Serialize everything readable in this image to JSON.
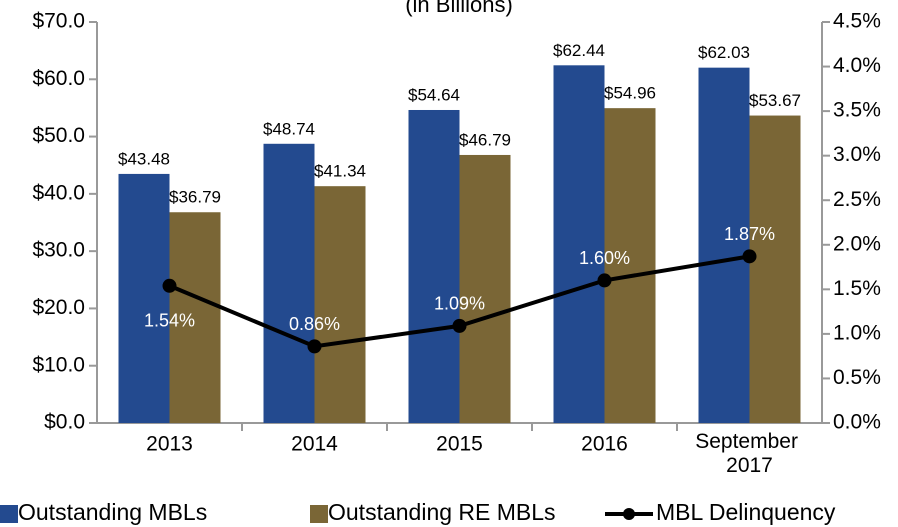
{
  "chart_data": {
    "type": "bar",
    "title": "(in Billions)",
    "categories": [
      "2013",
      "2014",
      "2015",
      "2016",
      "September 2017"
    ],
    "series": [
      {
        "name": "Outstanding MBLs",
        "color": "#234a8f",
        "values": [
          43.48,
          48.74,
          54.64,
          62.44,
          62.03
        ],
        "value_labels": [
          "$43.48",
          "$48.74",
          "$54.64",
          "$62.44",
          "$62.03"
        ]
      },
      {
        "name": "Outstanding RE MBLs",
        "color": "#7a6636",
        "values": [
          36.79,
          41.34,
          46.79,
          54.96,
          53.67
        ],
        "value_labels": [
          "$36.79",
          "$41.34",
          "$46.79",
          "$54.96",
          "$53.67"
        ]
      },
      {
        "name": "MBL Delinquency",
        "type": "line",
        "axis": "y2",
        "color": "#000000",
        "values": [
          1.54,
          0.86,
          1.09,
          1.6,
          1.87
        ],
        "value_labels": [
          "1.54%",
          "0.86%",
          "1.09%",
          "1.60%",
          "1.87%"
        ]
      }
    ],
    "ylim": [
      0,
      70
    ],
    "yticks": [
      {
        "value": 0,
        "label": "$0.0"
      },
      {
        "value": 10,
        "label": "$10.0"
      },
      {
        "value": 20,
        "label": "$20.0"
      },
      {
        "value": 30,
        "label": "$30.0"
      },
      {
        "value": 40,
        "label": "$40.0"
      },
      {
        "value": 50,
        "label": "$50.0"
      },
      {
        "value": 60,
        "label": "$60.0"
      },
      {
        "value": 70,
        "label": "$70.0"
      }
    ],
    "y2lim": [
      0,
      4.5
    ],
    "y2ticks": [
      {
        "value": 0,
        "label": "0.0%"
      },
      {
        "value": 0.5,
        "label": "0.5%"
      },
      {
        "value": 1,
        "label": "1.0%"
      },
      {
        "value": 1.5,
        "label": "1.5%"
      },
      {
        "value": 2,
        "label": "2.0%"
      },
      {
        "value": 2.5,
        "label": "2.5%"
      },
      {
        "value": 3,
        "label": "3.0%"
      },
      {
        "value": 3.5,
        "label": "3.5%"
      },
      {
        "value": 4,
        "label": "4.0%"
      },
      {
        "value": 4.5,
        "label": "4.5%"
      }
    ],
    "grid": false,
    "legend": "bottom"
  }
}
